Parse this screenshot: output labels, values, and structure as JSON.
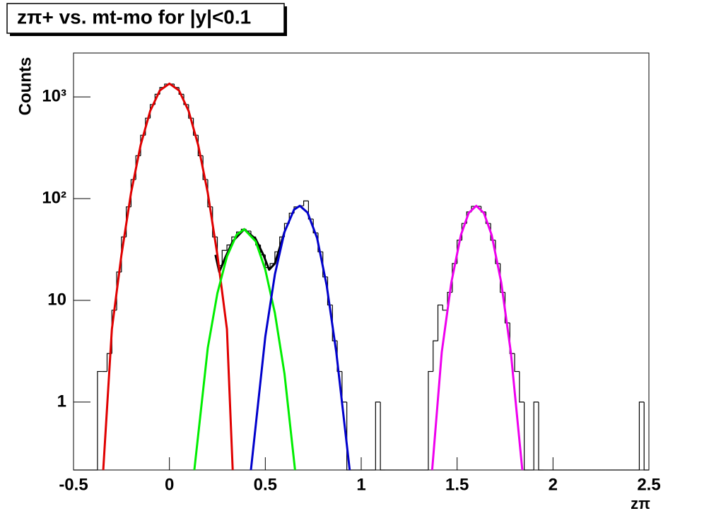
{
  "chart_data": {
    "type": "histogram",
    "title": "zπ+ vs. mt-mo for |y|<0.1",
    "xlabel": "zπ",
    "ylabel": "Counts",
    "log_y": true,
    "xlim": [
      -0.5,
      2.5
    ],
    "ylim": [
      0.215,
      2700
    ],
    "xticks": [
      -0.5,
      0,
      0.5,
      1,
      1.5,
      2,
      2.5
    ],
    "yticks": [
      1,
      10,
      {
        "value": 100,
        "label": "10²"
      },
      {
        "value": 1000,
        "label": "10³"
      }
    ],
    "color": "#000000",
    "bins": [
      -0.5,
      -0.475,
      -0.45,
      -0.425,
      -0.4,
      -0.375,
      -0.35,
      -0.325,
      -0.3,
      -0.275,
      -0.25,
      -0.225,
      -0.2,
      -0.175,
      -0.15,
      -0.125,
      -0.1,
      -0.075,
      -0.05,
      -0.025,
      0,
      0.025,
      0.05,
      0.075,
      0.1,
      0.125,
      0.15,
      0.175,
      0.2,
      0.225,
      0.25,
      0.275,
      0.3,
      0.325,
      0.35,
      0.375,
      0.4,
      0.425,
      0.45,
      0.475,
      0.5,
      0.525,
      0.55,
      0.575,
      0.6,
      0.625,
      0.65,
      0.675,
      0.7,
      0.725,
      0.75,
      0.775,
      0.8,
      0.825,
      0.85,
      0.875,
      0.9,
      0.925,
      0.95,
      0.975,
      1,
      1.025,
      1.05,
      1.075,
      1.1,
      1.125,
      1.15,
      1.175,
      1.2,
      1.225,
      1.25,
      1.275,
      1.3,
      1.325,
      1.35,
      1.375,
      1.4,
      1.425,
      1.45,
      1.475,
      1.5,
      1.525,
      1.55,
      1.575,
      1.6,
      1.625,
      1.65,
      1.675,
      1.7,
      1.725,
      1.75,
      1.775,
      1.8,
      1.825,
      1.85,
      1.875,
      1.9,
      1.925,
      1.95,
      1.975,
      2,
      2.025,
      2.05,
      2.075,
      2.1,
      2.125,
      2.15,
      2.175,
      2.2,
      2.225,
      2.25,
      2.275,
      2.3,
      2.325,
      2.35,
      2.375,
      2.4,
      2.425,
      2.45,
      2.475,
      2.5
    ],
    "values": [
      0,
      0,
      0,
      0,
      0,
      2,
      2,
      3,
      8,
      19,
      42,
      83,
      154,
      264,
      420,
      618,
      841,
      1061,
      1238,
      1337,
      1337,
      1238,
      1061,
      841,
      618,
      420,
      264,
      154,
      83,
      42,
      22,
      31,
      35,
      42,
      47,
      50,
      48,
      42,
      35,
      28,
      21,
      23,
      30,
      42,
      57,
      72,
      83,
      85,
      95,
      63,
      46,
      30,
      17,
      9,
      4,
      2,
      1,
      0,
      0,
      0,
      0,
      0,
      0,
      1,
      0,
      0,
      0,
      0,
      0,
      0,
      0,
      0,
      0,
      0,
      2,
      4,
      9,
      8,
      12,
      23,
      39,
      57,
      74,
      84,
      84,
      74,
      57,
      39,
      23,
      12,
      6,
      3,
      2,
      1,
      0,
      0,
      1,
      0,
      0,
      0,
      0,
      0,
      0,
      0,
      0,
      0,
      0,
      0,
      0,
      0,
      0,
      0,
      0,
      0,
      0,
      0,
      0,
      0,
      1,
      0
    ],
    "fits": [
      {
        "color": "#000000",
        "x": [
          0.24,
          0.26,
          0.29,
          0.33,
          0.39,
          0.45,
          0.49,
          0.52,
          0.55,
          0.6
        ],
        "y": [
          28,
          19,
          26,
          38,
          50,
          40,
          28,
          20,
          23,
          47
        ]
      },
      {
        "color": "#e00000",
        "x": [
          -0.345,
          -0.3,
          -0.25,
          -0.2,
          -0.15,
          -0.1,
          -0.05,
          0,
          0.05,
          0.1,
          0.15,
          0.2,
          0.25,
          0.3,
          0.33
        ],
        "y": [
          0.215,
          5.2,
          28,
          114,
          336,
          729,
          1157,
          1350,
          1157,
          729,
          336,
          114,
          28,
          5.2,
          0.215
        ]
      },
      {
        "color": "#00ee00",
        "x": [
          0.13,
          0.2,
          0.25,
          0.3,
          0.35,
          0.39,
          0.45,
          0.5,
          0.55,
          0.6,
          0.655
        ],
        "y": [
          0.215,
          3.4,
          11.7,
          27,
          44,
          50,
          38,
          20,
          7.5,
          1.9,
          0.215
        ]
      },
      {
        "color": "#0000cc",
        "x": [
          0.425,
          0.5,
          0.55,
          0.6,
          0.65,
          0.68,
          0.72,
          0.77,
          0.82,
          0.87,
          0.94
        ],
        "y": [
          0.215,
          4.4,
          18,
          47,
          78,
          85,
          73,
          41,
          14,
          3.1,
          0.215
        ]
      },
      {
        "color": "#ee00ee",
        "x": [
          1.37,
          1.42,
          1.47,
          1.52,
          1.56,
          1.6,
          1.64,
          1.68,
          1.73,
          1.78,
          1.84
        ],
        "y": [
          0.215,
          3.1,
          15,
          44,
          72,
          85,
          72,
          44,
          15,
          3.1,
          0.215
        ]
      }
    ]
  }
}
